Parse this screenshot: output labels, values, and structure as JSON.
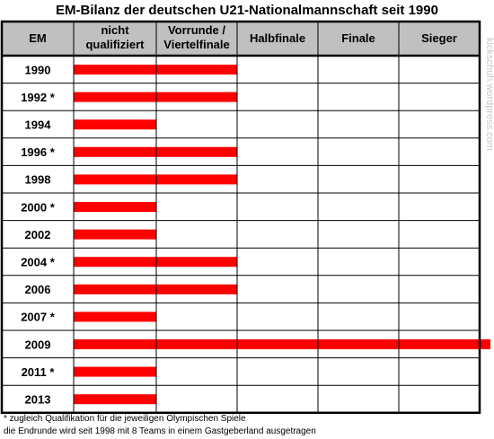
{
  "chart_data": {
    "type": "bar",
    "title": "EM-Bilanz der deutschen U21-Nationalmannschaft seit 1990",
    "row_header": "EM",
    "stages": [
      [
        "nicht",
        "qualifiziert"
      ],
      [
        "Vorrunde /",
        "Viertelfinale"
      ],
      [
        "Halbfinale"
      ],
      [
        "Finale"
      ],
      [
        "Sieger"
      ]
    ],
    "categories": [
      "1990",
      "1992 *",
      "1994",
      "1996 *",
      "1998",
      "2000 *",
      "2002",
      "2004 *",
      "2006",
      "2007 *",
      "2009",
      "2011 *",
      "2013"
    ],
    "values": [
      2,
      2,
      1,
      2,
      2,
      1,
      1,
      2,
      2,
      1,
      5,
      1,
      1
    ],
    "colors": {
      "bar": "#ff0000",
      "header": "#c0c0c0"
    }
  },
  "watermark": "kickschuh.wordpress.com",
  "footnotes": [
    "* zugleich Qualifikation für die jeweiligen Olympischen Spiele",
    "die Endrunde wird seit 1998 mit 8 Teams in einem Gastgeberland ausgetragen"
  ]
}
